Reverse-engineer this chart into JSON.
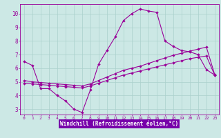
{
  "bg_color": "#cce8e5",
  "grid_color": "#aad0cc",
  "line_color": "#990099",
  "xlabel": "Windchill (Refroidissement éolien,°C)",
  "xlabel_bg": "#7700aa",
  "xlabel_fg": "#ffffff",
  "xlim_min": -0.5,
  "xlim_max": 23.5,
  "ylim_min": 2.6,
  "ylim_max": 10.7,
  "yticks": [
    3,
    4,
    5,
    6,
    7,
    8,
    9,
    10
  ],
  "xticks": [
    0,
    1,
    2,
    3,
    4,
    5,
    6,
    7,
    8,
    9,
    10,
    11,
    12,
    13,
    14,
    15,
    16,
    17,
    18,
    19,
    20,
    21,
    22,
    23
  ],
  "line1_x": [
    0,
    1,
    2,
    3,
    4,
    5,
    6,
    7,
    8,
    9,
    10,
    11,
    12,
    13,
    14,
    15,
    16,
    17,
    18,
    19,
    20,
    21,
    22,
    23
  ],
  "line1_y": [
    6.5,
    6.2,
    4.5,
    4.5,
    4.0,
    3.6,
    3.0,
    2.75,
    4.4,
    6.3,
    7.3,
    8.3,
    9.5,
    10.0,
    10.35,
    10.2,
    10.1,
    8.0,
    7.6,
    7.3,
    7.2,
    7.0,
    5.9,
    5.5
  ],
  "line2_x": [
    0,
    1,
    2,
    3,
    4,
    5,
    6,
    7,
    8,
    9,
    10,
    11,
    12,
    13,
    14,
    15,
    16,
    17,
    18,
    19,
    20,
    21,
    22,
    23
  ],
  "line2_y": [
    4.9,
    4.85,
    4.8,
    4.75,
    4.7,
    4.65,
    4.6,
    4.55,
    4.7,
    4.9,
    5.1,
    5.3,
    5.5,
    5.65,
    5.8,
    5.95,
    6.1,
    6.25,
    6.4,
    6.55,
    6.7,
    6.8,
    6.9,
    5.5
  ],
  "line3_x": [
    0,
    1,
    2,
    3,
    4,
    5,
    6,
    7,
    8,
    9,
    10,
    11,
    12,
    13,
    14,
    15,
    16,
    17,
    18,
    19,
    20,
    21,
    22,
    23
  ],
  "line3_y": [
    5.1,
    5.0,
    4.95,
    4.9,
    4.85,
    4.8,
    4.75,
    4.7,
    4.85,
    5.1,
    5.35,
    5.6,
    5.85,
    6.0,
    6.15,
    6.35,
    6.55,
    6.75,
    6.95,
    7.1,
    7.25,
    7.4,
    7.55,
    5.55
  ]
}
